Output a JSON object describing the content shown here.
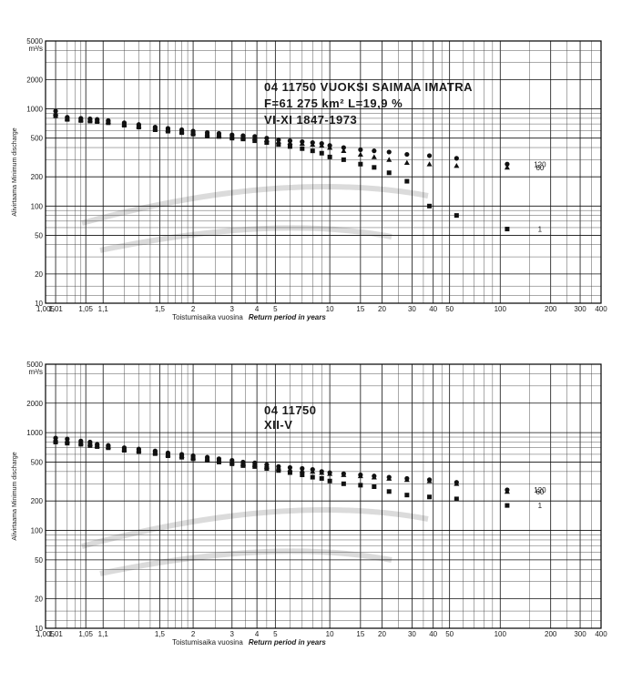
{
  "chart_data": [
    {
      "type": "scatter",
      "xscale": "gumbel-probability",
      "yscale": "log",
      "title_lines": [
        "04 11750   VUOKSI  SAIMAA  IMATRA",
        "F=61 275 km²   L=19,9 %",
        "VI-XI          1847-1973"
      ],
      "y_unit": "m³/s",
      "ylabel": "Alivirtaama  Minimum discharge",
      "xlabel": "Toistumisaika vuosina",
      "xlabel_en": "Return period in years",
      "xlim": [
        1.005,
        400
      ],
      "ylim": [
        10,
        5000
      ],
      "x_ticks": [
        "1,005",
        "1,01",
        "1,05",
        "1,1",
        "1,5",
        "2",
        "3",
        "4",
        "5",
        "10",
        "15",
        "20",
        "30",
        "40",
        "50",
        "100",
        "200",
        "300",
        "400"
      ],
      "y_ticks": [
        "5000",
        "2000",
        "1000",
        "500",
        "200",
        "100",
        "50",
        "20",
        "10"
      ],
      "series": [
        {
          "name": "120",
          "marker": "circle",
          "x": [
            1.01,
            1.02,
            1.04,
            1.06,
            1.08,
            1.12,
            1.2,
            1.3,
            1.45,
            1.6,
            1.8,
            2.0,
            2.3,
            2.6,
            3.0,
            3.4,
            3.9,
            4.5,
            5.2,
            6,
            7,
            8,
            9,
            10,
            12,
            15,
            18,
            22,
            28,
            38,
            55,
            110
          ],
          "y": [
            950,
            820,
            800,
            790,
            780,
            760,
            720,
            690,
            650,
            630,
            610,
            590,
            570,
            560,
            540,
            530,
            520,
            500,
            480,
            470,
            460,
            450,
            440,
            420,
            400,
            380,
            370,
            360,
            340,
            330,
            310,
            270
          ]
        },
        {
          "name": "60",
          "marker": "triangle",
          "x": [
            1.01,
            1.02,
            1.04,
            1.06,
            1.08,
            1.12,
            1.2,
            1.3,
            1.45,
            1.6,
            1.8,
            2.0,
            2.3,
            2.6,
            3.0,
            3.4,
            3.9,
            4.5,
            5.2,
            6,
            7,
            8,
            9,
            10,
            12,
            15,
            18,
            22,
            28,
            38,
            55,
            110
          ],
          "y": [
            900,
            800,
            780,
            770,
            760,
            740,
            700,
            670,
            630,
            610,
            590,
            570,
            550,
            540,
            520,
            510,
            500,
            480,
            460,
            450,
            440,
            430,
            420,
            400,
            370,
            340,
            320,
            300,
            280,
            270,
            260,
            250
          ]
        },
        {
          "name": "1",
          "marker": "square",
          "x": [
            1.01,
            1.02,
            1.04,
            1.06,
            1.08,
            1.12,
            1.2,
            1.3,
            1.45,
            1.6,
            1.8,
            2.0,
            2.3,
            2.6,
            3.0,
            3.4,
            3.9,
            4.5,
            5.2,
            6,
            7,
            8,
            9,
            10,
            12,
            15,
            18,
            22,
            28,
            38,
            55,
            110
          ],
          "y": [
            850,
            780,
            760,
            750,
            740,
            720,
            680,
            650,
            610,
            590,
            570,
            550,
            530,
            520,
            500,
            490,
            470,
            450,
            430,
            410,
            390,
            370,
            350,
            320,
            300,
            270,
            250,
            220,
            180,
            100,
            80,
            58
          ]
        }
      ]
    },
    {
      "type": "scatter",
      "xscale": "gumbel-probability",
      "yscale": "log",
      "title_lines": [
        "04 11750",
        "XII-V"
      ],
      "y_unit": "m³/s",
      "ylabel": "Alivirtaama  Minimum discharge",
      "xlabel": "Toistumisaika vuosina",
      "xlabel_en": "Return period in years",
      "xlim": [
        1.005,
        400
      ],
      "ylim": [
        10,
        5000
      ],
      "x_ticks": [
        "1,005",
        "1,01",
        "1,05",
        "1,1",
        "1,5",
        "2",
        "3",
        "4",
        "5",
        "10",
        "15",
        "20",
        "30",
        "40",
        "50",
        "100",
        "200",
        "300",
        "400"
      ],
      "y_ticks": [
        "5000",
        "2000",
        "1000",
        "500",
        "200",
        "100",
        "50",
        "20",
        "10"
      ],
      "series": [
        {
          "name": "120",
          "marker": "circle",
          "x": [
            1.01,
            1.02,
            1.04,
            1.06,
            1.08,
            1.12,
            1.2,
            1.3,
            1.45,
            1.6,
            1.8,
            2.0,
            2.3,
            2.6,
            3.0,
            3.4,
            3.9,
            4.5,
            5.2,
            6,
            7,
            8,
            9,
            10,
            12,
            15,
            18,
            22,
            28,
            38,
            55,
            110
          ],
          "y": [
            880,
            860,
            820,
            800,
            760,
            740,
            700,
            680,
            650,
            620,
            600,
            580,
            560,
            540,
            520,
            500,
            490,
            470,
            450,
            440,
            430,
            420,
            400,
            390,
            380,
            370,
            360,
            350,
            340,
            330,
            310,
            260
          ]
        },
        {
          "name": "60",
          "marker": "triangle",
          "x": [
            1.01,
            1.02,
            1.04,
            1.06,
            1.08,
            1.12,
            1.2,
            1.3,
            1.45,
            1.6,
            1.8,
            2.0,
            2.3,
            2.6,
            3.0,
            3.4,
            3.9,
            4.5,
            5.2,
            6,
            7,
            8,
            9,
            10,
            12,
            15,
            18,
            22,
            28,
            38,
            55,
            110
          ],
          "y": [
            840,
            820,
            790,
            770,
            740,
            720,
            680,
            660,
            630,
            600,
            580,
            560,
            540,
            520,
            500,
            480,
            470,
            450,
            430,
            420,
            410,
            400,
            390,
            380,
            370,
            360,
            350,
            340,
            330,
            320,
            300,
            250
          ]
        },
        {
          "name": "1",
          "marker": "square",
          "x": [
            1.01,
            1.02,
            1.04,
            1.06,
            1.08,
            1.12,
            1.2,
            1.3,
            1.45,
            1.6,
            1.8,
            2.0,
            2.3,
            2.6,
            3.0,
            3.4,
            3.9,
            4.5,
            5.2,
            6,
            7,
            8,
            9,
            10,
            12,
            15,
            18,
            22,
            28,
            38,
            55,
            110
          ],
          "y": [
            800,
            780,
            760,
            740,
            720,
            700,
            660,
            640,
            610,
            580,
            560,
            540,
            520,
            500,
            480,
            460,
            450,
            430,
            410,
            390,
            370,
            350,
            340,
            320,
            300,
            290,
            280,
            250,
            230,
            220,
            210,
            180
          ]
        }
      ]
    }
  ]
}
